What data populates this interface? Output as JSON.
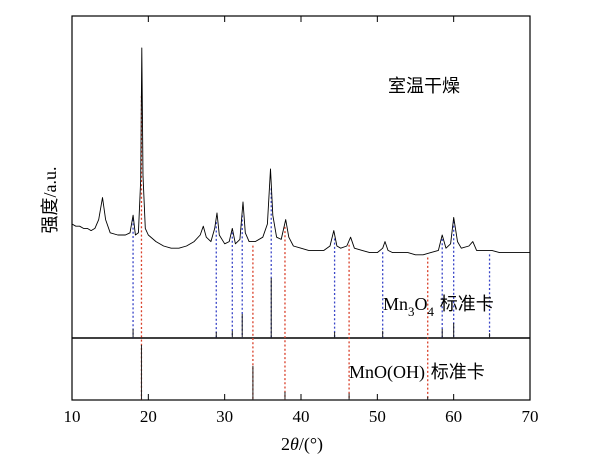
{
  "chart_data": {
    "type": "line",
    "xlabel_prefix": "2",
    "xlabel_var": "θ",
    "xlabel_unit": "/(°)",
    "ylabel": "强度/a.u.",
    "xlim": [
      10,
      70
    ],
    "xticks": [
      10,
      20,
      30,
      40,
      50,
      60,
      70
    ],
    "annotation": "室温干燥",
    "colors": {
      "mn3o4_guide": "#3a46c8",
      "mnooh_guide": "#d9402a",
      "trace": "#000000"
    },
    "series": [
      {
        "points": [
          [
            10.0,
            0.2
          ],
          [
            10.5,
            0.19
          ],
          [
            11.0,
            0.19
          ],
          [
            11.5,
            0.18
          ],
          [
            12.0,
            0.18
          ],
          [
            12.5,
            0.17
          ],
          [
            13.0,
            0.18
          ],
          [
            13.5,
            0.22
          ],
          [
            14.0,
            0.32
          ],
          [
            14.4,
            0.22
          ],
          [
            15.0,
            0.16
          ],
          [
            16.0,
            0.15
          ],
          [
            17.0,
            0.15
          ],
          [
            17.6,
            0.16
          ],
          [
            18.0,
            0.24
          ],
          [
            18.3,
            0.15
          ],
          [
            18.7,
            0.16
          ],
          [
            19.0,
            0.4
          ],
          [
            19.15,
            1.0
          ],
          [
            19.3,
            0.42
          ],
          [
            19.6,
            0.18
          ],
          [
            20.0,
            0.15
          ],
          [
            21.0,
            0.12
          ],
          [
            22.0,
            0.1
          ],
          [
            23.0,
            0.09
          ],
          [
            24.0,
            0.09
          ],
          [
            25.0,
            0.1
          ],
          [
            26.0,
            0.12
          ],
          [
            26.8,
            0.15
          ],
          [
            27.2,
            0.19
          ],
          [
            27.6,
            0.14
          ],
          [
            28.2,
            0.12
          ],
          [
            28.7,
            0.18
          ],
          [
            29.0,
            0.25
          ],
          [
            29.3,
            0.15
          ],
          [
            30.0,
            0.11
          ],
          [
            30.6,
            0.12
          ],
          [
            31.0,
            0.18
          ],
          [
            31.4,
            0.11
          ],
          [
            32.0,
            0.13
          ],
          [
            32.4,
            0.3
          ],
          [
            32.7,
            0.16
          ],
          [
            33.2,
            0.12
          ],
          [
            34.0,
            0.12
          ],
          [
            35.0,
            0.14
          ],
          [
            35.6,
            0.2
          ],
          [
            36.0,
            0.45
          ],
          [
            36.3,
            0.24
          ],
          [
            36.8,
            0.14
          ],
          [
            37.4,
            0.13
          ],
          [
            38.0,
            0.22
          ],
          [
            38.4,
            0.14
          ],
          [
            39.0,
            0.1
          ],
          [
            40.0,
            0.09
          ],
          [
            41.0,
            0.08
          ],
          [
            42.0,
            0.08
          ],
          [
            43.0,
            0.08
          ],
          [
            43.8,
            0.1
          ],
          [
            44.3,
            0.17
          ],
          [
            44.7,
            0.1
          ],
          [
            45.2,
            0.09
          ],
          [
            46.0,
            0.1
          ],
          [
            46.5,
            0.14
          ],
          [
            47.0,
            0.09
          ],
          [
            48.0,
            0.08
          ],
          [
            49.0,
            0.07
          ],
          [
            50.0,
            0.07
          ],
          [
            50.7,
            0.09
          ],
          [
            51.0,
            0.12
          ],
          [
            51.4,
            0.08
          ],
          [
            52.0,
            0.07
          ],
          [
            53.0,
            0.07
          ],
          [
            54.0,
            0.07
          ],
          [
            55.0,
            0.06
          ],
          [
            56.0,
            0.06
          ],
          [
            57.0,
            0.07
          ],
          [
            58.0,
            0.08
          ],
          [
            58.5,
            0.15
          ],
          [
            59.0,
            0.09
          ],
          [
            59.6,
            0.11
          ],
          [
            60.0,
            0.23
          ],
          [
            60.5,
            0.12
          ],
          [
            61.0,
            0.09
          ],
          [
            62.0,
            0.1
          ],
          [
            62.5,
            0.12
          ],
          [
            63.0,
            0.08
          ],
          [
            64.0,
            0.08
          ],
          [
            65.0,
            0.08
          ],
          [
            66.0,
            0.07
          ],
          [
            67.0,
            0.07
          ],
          [
            68.0,
            0.07
          ],
          [
            69.0,
            0.07
          ],
          [
            70.0,
            0.07
          ]
        ]
      }
    ],
    "references": [
      {
        "label_formula": "Mn",
        "label_sub": "3",
        "label_o": "O",
        "label_sub2": "4",
        "label_suffix": " 标准卡",
        "color": "#3a46c8",
        "peaks": [
          18.0,
          28.9,
          31.0,
          32.3,
          36.1,
          44.4,
          50.7,
          58.5,
          60.0,
          64.7
        ],
        "intensities": [
          0.15,
          0.1,
          0.12,
          0.4,
          1.0,
          0.1,
          0.12,
          0.15,
          0.25,
          0.08
        ]
      },
      {
        "label_formula": "MnO(OH)",
        "label_suffix": " 标准卡",
        "color": "#d9402a",
        "peaks": [
          19.1,
          33.7,
          37.9,
          46.3,
          56.6
        ],
        "intensities": [
          1.0,
          0.62,
          0.15,
          0.12,
          0.06
        ]
      }
    ]
  }
}
